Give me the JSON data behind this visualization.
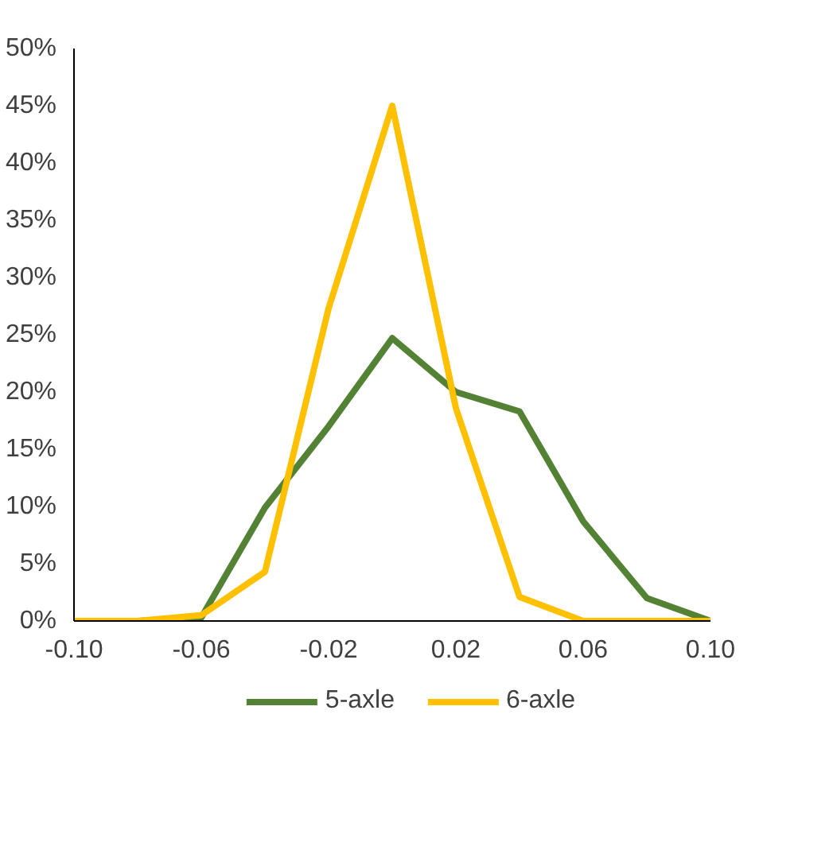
{
  "chart_data": {
    "type": "line",
    "x": [
      -0.1,
      -0.08,
      -0.06,
      -0.04,
      -0.02,
      0,
      0.02,
      0.04,
      0.06,
      0.08,
      0.1
    ],
    "series": [
      {
        "name": "5-axle",
        "color": "#548235",
        "values": [
          0,
          0,
          0.3,
          9.9,
          17,
          24.7,
          20,
          18.3,
          8.7,
          2,
          0
        ]
      },
      {
        "name": "6-axle",
        "color": "#ffc000",
        "values": [
          0,
          0,
          0.5,
          4.3,
          27.3,
          45,
          18.6,
          2.1,
          0,
          0,
          0
        ]
      }
    ],
    "xlim": [
      -0.1,
      0.1
    ],
    "xticks": [
      {
        "value": -0.1,
        "label": "-0.10"
      },
      -0.06,
      -0.02,
      0.02,
      0.06,
      {
        "value": 0.1,
        "label": "0.10"
      }
    ],
    "ylim": [
      0,
      50
    ],
    "yticks": [
      {
        "value": 0,
        "label": "0%"
      },
      {
        "value": 5,
        "label": "5%"
      },
      {
        "value": 10,
        "label": "10%"
      },
      {
        "value": 15,
        "label": "15%"
      },
      {
        "value": 20,
        "label": "20%"
      },
      {
        "value": 25,
        "label": "25%"
      },
      {
        "value": 30,
        "label": "30%"
      },
      {
        "value": 35,
        "label": "35%"
      },
      {
        "value": 40,
        "label": "40%"
      },
      {
        "value": 45,
        "label": "45%"
      },
      {
        "value": 50,
        "label": "50%"
      }
    ],
    "grid": false,
    "legend": "bottom",
    "marker": "none",
    "line_style": "solid"
  }
}
